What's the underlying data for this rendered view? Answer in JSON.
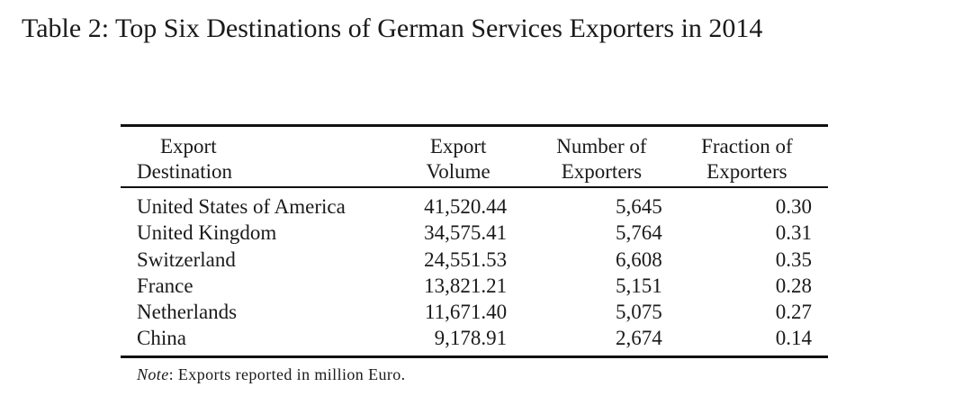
{
  "caption": "Table 2: Top Six Destinations of German Services Exporters in 2014",
  "table": {
    "headers": {
      "col1_line1": "Export",
      "col1_line2": "Destination",
      "col2_line1": "Export",
      "col2_line2": "Volume",
      "col3_line1": "Number of",
      "col3_line2": "Exporters",
      "col4_line1": "Fraction of",
      "col4_line2": "Exporters"
    },
    "rows": [
      {
        "destination": "United States of America",
        "volume": "41,520.44",
        "exporters": "5,645",
        "fraction": "0.30"
      },
      {
        "destination": "United Kingdom",
        "volume": "34,575.41",
        "exporters": "5,764",
        "fraction": "0.31"
      },
      {
        "destination": "Switzerland",
        "volume": "24,551.53",
        "exporters": "6,608",
        "fraction": "0.35"
      },
      {
        "destination": "France",
        "volume": "13,821.21",
        "exporters": "5,151",
        "fraction": "0.28"
      },
      {
        "destination": "Netherlands",
        "volume": "11,671.40",
        "exporters": "5,075",
        "fraction": "0.27"
      },
      {
        "destination": "China",
        "volume": "9,178.91",
        "exporters": "2,674",
        "fraction": "0.14"
      }
    ]
  },
  "note": {
    "label": "Note",
    "text": ": Exports reported in million Euro."
  }
}
